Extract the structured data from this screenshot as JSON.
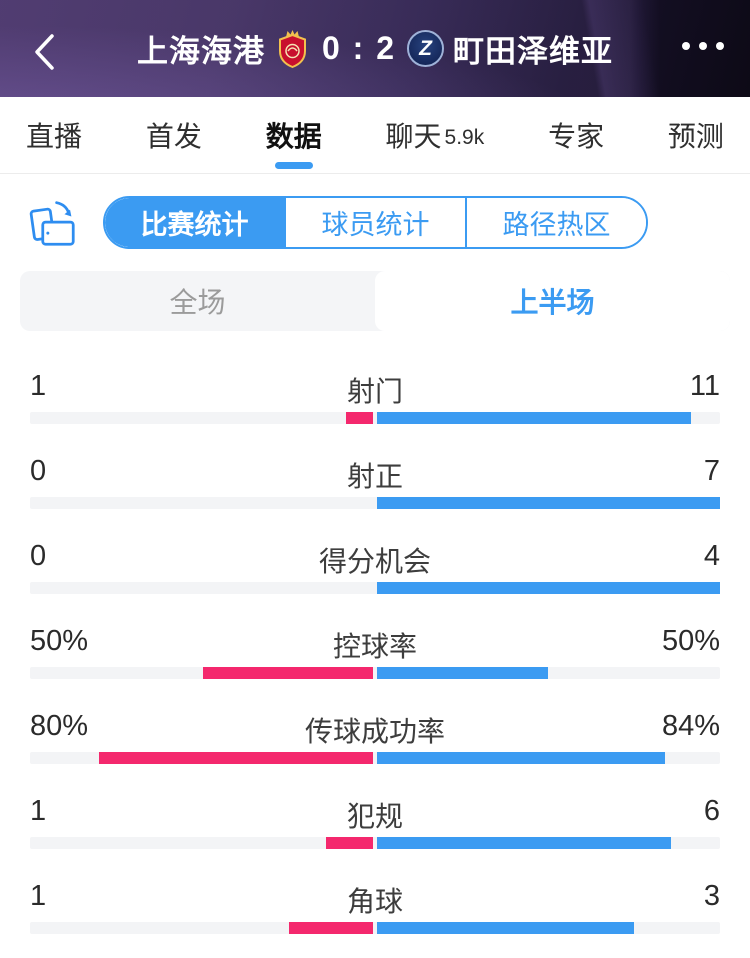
{
  "header": {
    "home_team": "上海海港",
    "away_team": "町田泽维亚",
    "score": "0 : 2",
    "away_badge_letter": "Z"
  },
  "tabs": [
    {
      "key": "live",
      "label": "直播",
      "active": false
    },
    {
      "key": "lineup",
      "label": "首发",
      "active": false
    },
    {
      "key": "data",
      "label": "数据",
      "active": true
    },
    {
      "key": "chat",
      "label": "聊天",
      "count": "5.9k",
      "active": false
    },
    {
      "key": "expert",
      "label": "专家",
      "active": false
    },
    {
      "key": "predict",
      "label": "预测",
      "active": false
    }
  ],
  "segments": [
    {
      "key": "match-stats",
      "label": "比赛统计",
      "active": true
    },
    {
      "key": "player-stats",
      "label": "球员统计",
      "active": false
    },
    {
      "key": "path-heatmap",
      "label": "路径热区",
      "active": false
    }
  ],
  "half_toggle": [
    {
      "key": "full-match",
      "label": "全场",
      "active": false
    },
    {
      "key": "first-half",
      "label": "上半场",
      "active": true
    }
  ],
  "stats": {
    "rows": [
      {
        "key": "shots",
        "label": "射门",
        "type": "count",
        "home": 1,
        "away": 11,
        "home_display": "1",
        "away_display": "11"
      },
      {
        "key": "shots-on-target",
        "label": "射正",
        "type": "count",
        "home": 0,
        "away": 7,
        "home_display": "0",
        "away_display": "7"
      },
      {
        "key": "big-chances",
        "label": "得分机会",
        "type": "count",
        "home": 0,
        "away": 4,
        "home_display": "0",
        "away_display": "4"
      },
      {
        "key": "possession",
        "label": "控球率",
        "type": "percent",
        "home": 50,
        "away": 50,
        "home_display": "50%",
        "away_display": "50%"
      },
      {
        "key": "pass-accuracy",
        "label": "传球成功率",
        "type": "percent",
        "home": 80,
        "away": 84,
        "home_display": "80%",
        "away_display": "84%"
      },
      {
        "key": "fouls",
        "label": "犯规",
        "type": "count",
        "home": 1,
        "away": 6,
        "home_display": "1",
        "away_display": "6"
      },
      {
        "key": "corners",
        "label": "角球",
        "type": "count",
        "home": 1,
        "away": 3,
        "home_display": "1",
        "away_display": "3"
      }
    ]
  },
  "colors": {
    "accent_blue": "#3b9bf2",
    "home_pink": "#f4286d",
    "track_gray": "#f3f4f6",
    "header_purple": "#3f2f5a"
  }
}
